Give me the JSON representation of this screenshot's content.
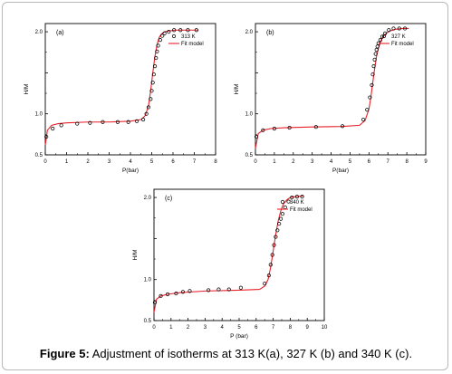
{
  "caption": {
    "label": "Figure 5:",
    "text": "Adjustment of isotherms at 313 K(a), 327 K (b) and 340 K (c)."
  },
  "colors": {
    "fit": "#e8202a",
    "marker": "#000000",
    "axis": "#000000"
  },
  "chart_data": [
    {
      "type": "scatter",
      "panel_label": "(a)",
      "xlabel": "P(bar)",
      "ylabel": "H/M",
      "xlim": [
        0,
        8
      ],
      "ylim": [
        0.5,
        2.1
      ],
      "xticks": [
        0,
        1,
        2,
        3,
        4,
        5,
        6,
        7,
        8
      ],
      "yticks": [
        0.5,
        1.0,
        1.5,
        2.0
      ],
      "ytick_labels": [
        "0.5",
        "1.0",
        "",
        "2.0"
      ],
      "legend_position": "top-right",
      "series": [
        {
          "name": "313 K",
          "kind": "markers",
          "x": [
            0.05,
            0.35,
            0.75,
            1.5,
            2.1,
            2.7,
            3.4,
            3.9,
            4.3,
            4.6,
            4.75,
            4.85,
            4.95,
            5.0,
            5.05,
            5.1,
            5.15,
            5.2,
            5.25,
            5.3,
            5.4,
            5.5,
            5.6,
            5.8,
            6.05,
            6.35,
            6.7,
            7.1
          ],
          "y": [
            0.72,
            0.82,
            0.86,
            0.88,
            0.89,
            0.9,
            0.9,
            0.9,
            0.91,
            0.93,
            1.0,
            1.08,
            1.18,
            1.28,
            1.38,
            1.48,
            1.58,
            1.68,
            1.76,
            1.83,
            1.9,
            1.95,
            1.98,
            2.0,
            2.02,
            2.02,
            2.02,
            2.02
          ]
        },
        {
          "name": "Fit model",
          "kind": "line",
          "x": [
            0.0,
            0.1,
            0.3,
            0.6,
            1.0,
            2.0,
            3.0,
            4.0,
            4.5,
            4.7,
            4.85,
            4.95,
            5.05,
            5.15,
            5.25,
            5.35,
            5.45,
            5.6,
            5.8,
            6.1,
            6.5,
            7.2
          ],
          "y": [
            0.62,
            0.8,
            0.86,
            0.88,
            0.89,
            0.9,
            0.9,
            0.91,
            0.93,
            0.98,
            1.1,
            1.28,
            1.5,
            1.7,
            1.84,
            1.93,
            1.97,
            2.0,
            2.01,
            2.02,
            2.02,
            2.02
          ]
        }
      ]
    },
    {
      "type": "scatter",
      "panel_label": "(b)",
      "xlabel": "P(bar)",
      "ylabel": "H/M",
      "xlim": [
        0,
        9
      ],
      "ylim": [
        0.5,
        2.1
      ],
      "xticks": [
        0,
        1,
        2,
        3,
        4,
        5,
        6,
        7,
        8,
        9
      ],
      "yticks": [
        0.5,
        1.0,
        1.5,
        2.0
      ],
      "ytick_labels": [
        "0.5",
        "1.0",
        "",
        "2.0"
      ],
      "legend_position": "top-right",
      "series": [
        {
          "name": "327 K",
          "kind": "markers",
          "x": [
            0.05,
            0.4,
            1.0,
            1.8,
            3.2,
            4.6,
            5.7,
            5.9,
            6.05,
            6.15,
            6.2,
            6.25,
            6.3,
            6.35,
            6.4,
            6.45,
            6.5,
            6.6,
            6.7,
            6.85,
            7.05,
            7.3,
            7.6,
            7.9
          ],
          "y": [
            0.72,
            0.8,
            0.82,
            0.83,
            0.84,
            0.85,
            0.93,
            1.05,
            1.2,
            1.35,
            1.48,
            1.58,
            1.66,
            1.73,
            1.78,
            1.82,
            1.86,
            1.9,
            1.94,
            1.98,
            2.02,
            2.04,
            2.04,
            2.04
          ]
        },
        {
          "name": "Fit model",
          "kind": "line",
          "x": [
            0.0,
            0.15,
            0.4,
            0.8,
            1.5,
            3.0,
            4.5,
            5.5,
            5.8,
            6.0,
            6.1,
            6.2,
            6.3,
            6.4,
            6.5,
            6.65,
            6.85,
            7.1,
            7.4,
            7.8,
            8.1
          ],
          "y": [
            0.58,
            0.76,
            0.8,
            0.82,
            0.83,
            0.84,
            0.845,
            0.86,
            0.92,
            1.06,
            1.2,
            1.38,
            1.55,
            1.7,
            1.8,
            1.9,
            1.97,
            2.01,
            2.03,
            2.04,
            2.04
          ]
        }
      ]
    },
    {
      "type": "scatter",
      "panel_label": "(c)",
      "xlabel": "P (bar)",
      "ylabel": "H/M",
      "xlim": [
        0,
        10
      ],
      "ylim": [
        0.5,
        2.1
      ],
      "xticks": [
        0,
        1,
        2,
        3,
        4,
        5,
        6,
        7,
        8,
        9,
        10
      ],
      "yticks": [
        0.5,
        1.0,
        1.5,
        2.0
      ],
      "ytick_labels": [
        "0.5",
        "1.0",
        "",
        "2.0"
      ],
      "legend_position": "top-right",
      "series": [
        {
          "name": "340 K",
          "kind": "markers",
          "x": [
            0.05,
            0.4,
            0.8,
            1.3,
            1.7,
            2.1,
            3.2,
            3.8,
            4.4,
            5.1,
            6.5,
            6.75,
            6.85,
            6.95,
            7.05,
            7.15,
            7.25,
            7.35,
            7.45,
            7.55,
            7.7,
            7.9,
            8.1,
            8.4,
            8.7
          ],
          "y": [
            0.72,
            0.8,
            0.82,
            0.83,
            0.85,
            0.86,
            0.87,
            0.88,
            0.88,
            0.9,
            0.95,
            1.05,
            1.18,
            1.3,
            1.42,
            1.52,
            1.6,
            1.68,
            1.74,
            1.8,
            1.88,
            1.95,
            2.0,
            2.01,
            2.01
          ]
        },
        {
          "name": "Fit model",
          "kind": "line",
          "x": [
            0.0,
            0.15,
            0.4,
            0.8,
            1.5,
            3.0,
            5.0,
            6.2,
            6.5,
            6.7,
            6.85,
            7.0,
            7.15,
            7.3,
            7.45,
            7.6,
            7.8,
            8.0,
            8.3,
            8.8
          ],
          "y": [
            0.6,
            0.76,
            0.8,
            0.82,
            0.84,
            0.86,
            0.87,
            0.88,
            0.92,
            1.0,
            1.15,
            1.35,
            1.55,
            1.72,
            1.84,
            1.92,
            1.97,
            2.0,
            2.01,
            2.02
          ]
        }
      ]
    }
  ]
}
